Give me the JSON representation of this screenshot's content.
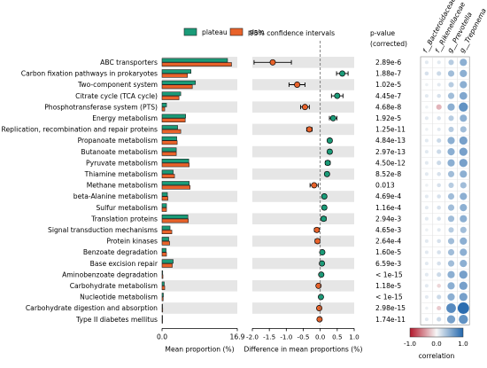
{
  "chart_data": {
    "type": "bar",
    "legend": {
      "placement": "top",
      "items": [
        {
          "name": "plateau",
          "color": "#1a9b78"
        },
        {
          "name": "plain",
          "color": "#e8622a"
        }
      ]
    },
    "ci_title": "95% confidence intervals",
    "pvalue_header": [
      "p-value",
      "(corrected)"
    ],
    "categories": [
      "ABC transporters",
      "Carbon fixation pathways in prokaryotes",
      "Two-component system",
      "Citrate cycle (TCA cycle)",
      "Phosphotransferase system (PTS)",
      "Energy metabolism",
      "Replication, recombination and repair proteins",
      "Propanoate metabolism",
      "Butanoate metabolism",
      "Pyruvate metabolism",
      "Thiamine metabolism",
      "Methane metabolism",
      "beta-Alanine metabolism",
      "Sulfur metabolism",
      "Translation proteins",
      "Signal transduction mechanisms",
      "Protein kinases",
      "Benzoate degradation",
      "Base excision repair",
      "Aminobenzoate degradation",
      "Carbohydrate metabolism",
      "Nucleotide metabolism",
      "Carbohydrate digestion and absorption",
      "Type II diabetes mellitus"
    ],
    "series": [
      {
        "name": "plateau",
        "color": "#1a9b78",
        "values": [
          14.7,
          6.5,
          7.5,
          4.2,
          1.0,
          5.3,
          3.5,
          3.3,
          3.2,
          6.0,
          2.5,
          6.1,
          1.2,
          1.0,
          5.8,
          1.8,
          1.5,
          0.9,
          2.5,
          0.15,
          0.5,
          0.3,
          0.1,
          0.05
        ]
      },
      {
        "name": "plain",
        "color": "#e8622a",
        "values": [
          15.6,
          5.7,
          6.8,
          3.8,
          0.6,
          5.2,
          4.2,
          3.4,
          3.2,
          6.1,
          2.8,
          6.3,
          1.3,
          1.0,
          5.9,
          2.2,
          1.7,
          1.0,
          2.3,
          0.2,
          0.6,
          0.25,
          0.15,
          0.08
        ]
      }
    ],
    "bar_axis": {
      "label": "Mean proportion (%)",
      "ticks": [
        "0.0",
        "16.9"
      ],
      "range": [
        0,
        16.9
      ]
    },
    "difference": {
      "label": "Difference in mean proportions (%)",
      "ticks": [
        "-2.0",
        "-1.5",
        "-1.0",
        "-0.5",
        "0.0",
        "0.5",
        "1.0"
      ],
      "range": [
        -2.0,
        1.0
      ],
      "values": [
        -1.4,
        0.65,
        -0.68,
        0.5,
        -0.45,
        0.38,
        -0.32,
        0.28,
        0.28,
        0.22,
        0.2,
        -0.18,
        0.12,
        0.12,
        0.1,
        -0.1,
        -0.08,
        0.06,
        0.05,
        0.03,
        -0.05,
        0.02,
        -0.03,
        -0.02
      ],
      "ci_low": [
        -1.95,
        0.48,
        -0.92,
        0.33,
        -0.58,
        0.27,
        -0.4,
        0.22,
        0.22,
        0.15,
        0.14,
        -0.3,
        0.06,
        0.06,
        0.03,
        -0.17,
        -0.15,
        0.02,
        0.0,
        0.01,
        -0.08,
        0.0,
        -0.05,
        -0.04
      ],
      "ci_high": [
        -0.85,
        0.82,
        -0.45,
        0.67,
        -0.32,
        0.49,
        -0.24,
        0.34,
        0.34,
        0.29,
        0.26,
        -0.06,
        0.18,
        0.18,
        0.17,
        -0.03,
        -0.01,
        0.1,
        0.1,
        0.05,
        -0.02,
        0.04,
        -0.01,
        0.0
      ]
    },
    "pvalues": [
      "2.89e-6",
      "1.88e-7",
      "1.02e-5",
      "4.45e-7",
      "4.68e-8",
      "1.92e-5",
      "1.25e-11",
      "4.84e-13",
      "2.97e-13",
      "4.50e-12",
      "8.52e-8",
      "0.013",
      "4.69e-4",
      "1.16e-4",
      "2.94e-3",
      "4.65e-3",
      "2.64e-4",
      "1.60e-5",
      "6.59e-3",
      "< 1e-15",
      "1.18e-5",
      "< 1e-15",
      "2.98e-15",
      "1.74e-11"
    ],
    "heatmap": {
      "columns": [
        "f__Bacteroidaceae",
        "f__Rikenellaceae",
        "g__Prevotella",
        "g__Treponema"
      ],
      "values": [
        [
          0.1,
          0.1,
          0.3,
          0.5
        ],
        [
          0.15,
          0.2,
          0.4,
          0.5
        ],
        [
          0.05,
          0.1,
          0.3,
          0.5
        ],
        [
          0.1,
          0.15,
          0.4,
          0.55
        ],
        [
          0.05,
          -0.3,
          0.5,
          0.7
        ],
        [
          0.1,
          0.15,
          0.3,
          0.5
        ],
        [
          0.05,
          0.1,
          0.3,
          0.4
        ],
        [
          0.1,
          0.2,
          0.5,
          0.6
        ],
        [
          0.1,
          0.2,
          0.5,
          0.6
        ],
        [
          0.1,
          0.2,
          0.5,
          0.6
        ],
        [
          0.1,
          0.15,
          0.4,
          0.5
        ],
        [
          0.05,
          0.15,
          0.3,
          0.4
        ],
        [
          0.1,
          0.15,
          0.4,
          0.5
        ],
        [
          0.1,
          0.15,
          0.4,
          0.5
        ],
        [
          0.1,
          0.15,
          0.4,
          0.5
        ],
        [
          0.05,
          0.1,
          0.3,
          0.4
        ],
        [
          0.1,
          0.15,
          0.4,
          0.5
        ],
        [
          0.1,
          0.15,
          0.4,
          0.5
        ],
        [
          0.1,
          0.15,
          0.4,
          0.5
        ],
        [
          0.1,
          0.2,
          0.5,
          0.6
        ],
        [
          0.1,
          -0.15,
          0.5,
          0.6
        ],
        [
          0.1,
          0.2,
          0.5,
          0.6
        ],
        [
          0.05,
          -0.2,
          0.75,
          0.95
        ],
        [
          0.1,
          0.2,
          0.6,
          0.7
        ]
      ],
      "colorbar": {
        "label": "correlation",
        "ticks": [
          "-1.0",
          "0.0",
          "1.0"
        ],
        "range": [
          -1,
          1
        ]
      }
    }
  }
}
